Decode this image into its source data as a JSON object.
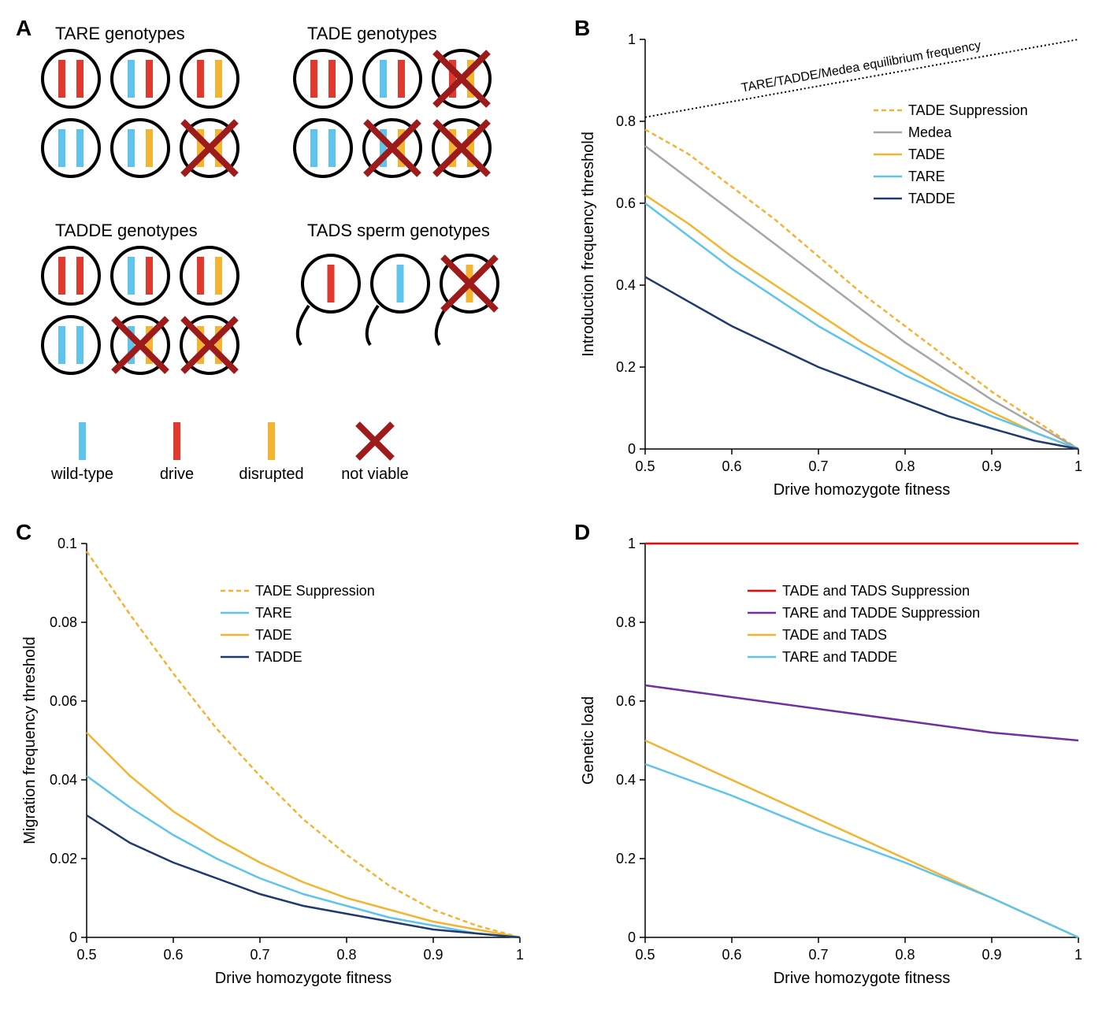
{
  "colors": {
    "wild_type": "#5ec4eb",
    "drive": "#e03a2e",
    "disrupted": "#f2b431",
    "not_viable_x": "#9e1b1b",
    "circle_stroke": "#000000",
    "medea": "#a6a6a6",
    "tade": "#f2b431",
    "tare": "#5ec4eb",
    "tadde": "#1f3a6e",
    "tade_supp": "#f2b431",
    "equilibrium_dotted": "#000000",
    "tade_tads_supp": "#ff0000",
    "tare_tadde_supp": "#7030a0",
    "tade_tads": "#f2b431",
    "tare_tadde": "#5ec4eb",
    "axis": "#000000",
    "bg": "#ffffff"
  },
  "panelA": {
    "label": "A",
    "sections": {
      "tare": {
        "title": "TARE genotypes",
        "cells": [
          {
            "alleles": [
              "drive",
              "drive"
            ],
            "viable": true
          },
          {
            "alleles": [
              "wild_type",
              "drive"
            ],
            "viable": true
          },
          {
            "alleles": [
              "drive",
              "disrupted"
            ],
            "viable": true
          },
          {
            "alleles": [
              "wild_type",
              "wild_type"
            ],
            "viable": true
          },
          {
            "alleles": [
              "wild_type",
              "disrupted"
            ],
            "viable": true
          },
          {
            "alleles": [
              "disrupted",
              "disrupted"
            ],
            "viable": false
          }
        ]
      },
      "tade": {
        "title": "TADE genotypes",
        "cells": [
          {
            "alleles": [
              "drive",
              "drive"
            ],
            "viable": true
          },
          {
            "alleles": [
              "wild_type",
              "drive"
            ],
            "viable": true
          },
          {
            "alleles": [
              "drive",
              "disrupted"
            ],
            "viable": false
          },
          {
            "alleles": [
              "wild_type",
              "wild_type"
            ],
            "viable": true
          },
          {
            "alleles": [
              "wild_type",
              "disrupted"
            ],
            "viable": false
          },
          {
            "alleles": [
              "disrupted",
              "disrupted"
            ],
            "viable": false
          }
        ]
      },
      "tadde": {
        "title": "TADDE genotypes",
        "cells": [
          {
            "alleles": [
              "drive",
              "drive"
            ],
            "viable": true
          },
          {
            "alleles": [
              "wild_type",
              "drive"
            ],
            "viable": true
          },
          {
            "alleles": [
              "drive",
              "disrupted"
            ],
            "viable": true
          },
          {
            "alleles": [
              "wild_type",
              "wild_type"
            ],
            "viable": true
          },
          {
            "alleles": [
              "wild_type",
              "disrupted"
            ],
            "viable": false
          },
          {
            "alleles": [
              "disrupted",
              "disrupted"
            ],
            "viable": false
          }
        ]
      },
      "tads": {
        "title": "TADS sperm genotypes",
        "sperm": [
          {
            "allele": "drive",
            "viable": true
          },
          {
            "allele": "wild_type",
            "viable": true
          },
          {
            "allele": "disrupted",
            "viable": false
          }
        ]
      }
    },
    "legend": [
      {
        "type": "bar",
        "key": "wild_type",
        "label": "wild-type"
      },
      {
        "type": "bar",
        "key": "drive",
        "label": "drive"
      },
      {
        "type": "bar",
        "key": "disrupted",
        "label": "disrupted"
      },
      {
        "type": "x",
        "label": "not viable"
      }
    ]
  },
  "panelB": {
    "label": "B",
    "type": "line",
    "xlabel": "Drive homozygote fitness",
    "ylabel": "Introduction frequency threshold",
    "xlim": [
      0.5,
      1.0
    ],
    "ylim": [
      0,
      1.0
    ],
    "xticks": [
      0.5,
      0.6,
      0.7,
      0.8,
      0.9,
      1
    ],
    "yticks": [
      0,
      0.2,
      0.4,
      0.6,
      0.8,
      1
    ],
    "equilibrium_label": "TARE/TADDE/Medea equilibrium frequency",
    "equilibrium_line": {
      "x": [
        0.5,
        1.0
      ],
      "y": [
        0.81,
        1.0
      ],
      "color_key": "equilibrium_dotted",
      "dash": "2,3",
      "width": 2
    },
    "legend": [
      {
        "label": "TADE Suppression",
        "key": "tade_supp",
        "dash": "6,4"
      },
      {
        "label": "Medea",
        "key": "medea",
        "dash": "none"
      },
      {
        "label": "TADE",
        "key": "tade",
        "dash": "none"
      },
      {
        "label": "TARE",
        "key": "tare",
        "dash": "none"
      },
      {
        "label": "TADDE",
        "key": "tadde",
        "dash": "none"
      }
    ],
    "series": [
      {
        "key": "tade_supp",
        "dash": "6,4",
        "width": 2.5,
        "x": [
          0.5,
          0.55,
          0.6,
          0.65,
          0.7,
          0.75,
          0.8,
          0.85,
          0.9,
          0.95,
          1.0
        ],
        "y": [
          0.78,
          0.72,
          0.64,
          0.56,
          0.47,
          0.38,
          0.3,
          0.22,
          0.14,
          0.07,
          0.0
        ]
      },
      {
        "key": "medea",
        "dash": "none",
        "width": 2.5,
        "x": [
          0.5,
          0.55,
          0.6,
          0.65,
          0.7,
          0.75,
          0.8,
          0.85,
          0.9,
          0.95,
          1.0
        ],
        "y": [
          0.74,
          0.66,
          0.58,
          0.5,
          0.42,
          0.34,
          0.26,
          0.19,
          0.12,
          0.06,
          0.0
        ]
      },
      {
        "key": "tade",
        "dash": "none",
        "width": 2.5,
        "x": [
          0.5,
          0.55,
          0.6,
          0.65,
          0.7,
          0.75,
          0.8,
          0.85,
          0.9,
          0.95,
          1.0
        ],
        "y": [
          0.62,
          0.55,
          0.47,
          0.4,
          0.33,
          0.26,
          0.2,
          0.14,
          0.09,
          0.04,
          0.0
        ]
      },
      {
        "key": "tare",
        "dash": "none",
        "width": 2.5,
        "x": [
          0.5,
          0.55,
          0.6,
          0.65,
          0.7,
          0.75,
          0.8,
          0.85,
          0.9,
          0.95,
          1.0
        ],
        "y": [
          0.6,
          0.52,
          0.44,
          0.37,
          0.3,
          0.24,
          0.18,
          0.13,
          0.08,
          0.04,
          0.0
        ]
      },
      {
        "key": "tadde",
        "dash": "none",
        "width": 2.5,
        "x": [
          0.5,
          0.55,
          0.6,
          0.65,
          0.7,
          0.75,
          0.8,
          0.85,
          0.9,
          0.95,
          1.0
        ],
        "y": [
          0.42,
          0.36,
          0.3,
          0.25,
          0.2,
          0.16,
          0.12,
          0.08,
          0.05,
          0.02,
          0.0
        ]
      }
    ],
    "label_fontsize": 20,
    "tick_fontsize": 18,
    "legend_fontsize": 18
  },
  "panelC": {
    "label": "C",
    "type": "line",
    "xlabel": "Drive homozygote fitness",
    "ylabel": "Migration frequency threshold",
    "xlim": [
      0.5,
      1.0
    ],
    "ylim": [
      0,
      0.1
    ],
    "xticks": [
      0.5,
      0.6,
      0.7,
      0.8,
      0.9,
      1
    ],
    "yticks": [
      0,
      0.02,
      0.04,
      0.06,
      0.08,
      0.1
    ],
    "legend": [
      {
        "label": "TADE Suppression",
        "key": "tade_supp",
        "dash": "6,4"
      },
      {
        "label": "TARE",
        "key": "tare",
        "dash": "none"
      },
      {
        "label": "TADE",
        "key": "tade",
        "dash": "none"
      },
      {
        "label": "TADDE",
        "key": "tadde",
        "dash": "none"
      }
    ],
    "series": [
      {
        "key": "tade_supp",
        "dash": "6,4",
        "width": 2.5,
        "x": [
          0.5,
          0.55,
          0.6,
          0.65,
          0.7,
          0.75,
          0.8,
          0.85,
          0.9,
          0.95,
          1.0
        ],
        "y": [
          0.098,
          0.082,
          0.067,
          0.053,
          0.041,
          0.03,
          0.021,
          0.013,
          0.007,
          0.003,
          0.0
        ]
      },
      {
        "key": "tade",
        "dash": "none",
        "width": 2.5,
        "x": [
          0.5,
          0.55,
          0.6,
          0.65,
          0.7,
          0.75,
          0.8,
          0.85,
          0.9,
          0.95,
          1.0
        ],
        "y": [
          0.052,
          0.041,
          0.032,
          0.025,
          0.019,
          0.014,
          0.01,
          0.007,
          0.004,
          0.002,
          0.0
        ]
      },
      {
        "key": "tare",
        "dash": "none",
        "width": 2.5,
        "x": [
          0.5,
          0.55,
          0.6,
          0.65,
          0.7,
          0.75,
          0.8,
          0.85,
          0.9,
          0.95,
          1.0
        ],
        "y": [
          0.041,
          0.033,
          0.026,
          0.02,
          0.015,
          0.011,
          0.008,
          0.005,
          0.003,
          0.001,
          0.0
        ]
      },
      {
        "key": "tadde",
        "dash": "none",
        "width": 2.5,
        "x": [
          0.5,
          0.55,
          0.6,
          0.65,
          0.7,
          0.75,
          0.8,
          0.85,
          0.9,
          0.95,
          1.0
        ],
        "y": [
          0.031,
          0.024,
          0.019,
          0.015,
          0.011,
          0.008,
          0.006,
          0.004,
          0.002,
          0.001,
          0.0
        ]
      }
    ],
    "label_fontsize": 20,
    "tick_fontsize": 18,
    "legend_fontsize": 18
  },
  "panelD": {
    "label": "D",
    "type": "line",
    "xlabel": "Drive homozygote fitness",
    "ylabel": "Genetic load",
    "xlim": [
      0.5,
      1.0
    ],
    "ylim": [
      0,
      1.0
    ],
    "xticks": [
      0.5,
      0.6,
      0.7,
      0.8,
      0.9,
      1
    ],
    "yticks": [
      0,
      0.2,
      0.4,
      0.6,
      0.8,
      1
    ],
    "legend": [
      {
        "label": "TADE and TADS Suppression",
        "key": "tade_tads_supp",
        "dash": "none"
      },
      {
        "label": "TARE and TADDE Suppression",
        "key": "tare_tadde_supp",
        "dash": "none"
      },
      {
        "label": "TADE and TADS",
        "key": "tade_tads",
        "dash": "none"
      },
      {
        "label": "TARE and TADDE",
        "key": "tare_tadde",
        "dash": "none"
      }
    ],
    "series": [
      {
        "key": "tade_tads_supp",
        "dash": "none",
        "width": 2.5,
        "x": [
          0.5,
          1.0
        ],
        "y": [
          1.0,
          1.0
        ]
      },
      {
        "key": "tare_tadde_supp",
        "dash": "none",
        "width": 2.5,
        "x": [
          0.5,
          0.6,
          0.7,
          0.8,
          0.9,
          1.0
        ],
        "y": [
          0.64,
          0.61,
          0.58,
          0.55,
          0.52,
          0.5
        ]
      },
      {
        "key": "tade_tads",
        "dash": "none",
        "width": 2.5,
        "x": [
          0.5,
          1.0
        ],
        "y": [
          0.5,
          0.0
        ]
      },
      {
        "key": "tare_tadde",
        "dash": "none",
        "width": 2.5,
        "x": [
          0.5,
          0.6,
          0.7,
          0.8,
          0.9,
          1.0
        ],
        "y": [
          0.44,
          0.36,
          0.27,
          0.19,
          0.1,
          0.0
        ]
      }
    ],
    "label_fontsize": 20,
    "tick_fontsize": 18,
    "legend_fontsize": 18
  }
}
